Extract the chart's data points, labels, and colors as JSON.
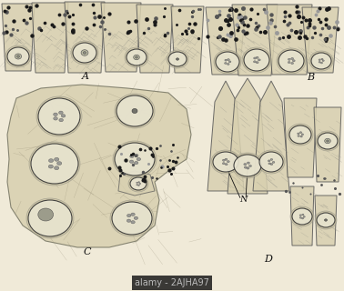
{
  "bg_color": "#f0ead8",
  "watermark_text": "alamy - 2AJHA97",
  "watermark_bg": "#1a1a1a",
  "watermark_fg": "#bbbbbb",
  "label_A": "A",
  "label_B": "B",
  "label_C": "C",
  "label_D": "D",
  "label_N": "N",
  "label_color": "#111111",
  "cell_fill": "#d8d0b0",
  "cell_edge": "#555555",
  "fiber_color": "#888880",
  "dot_dark": "#1a1a1a",
  "dot_mid": "#555555",
  "dot_light": "#999999",
  "nucleus_fill": "#e8e4d0",
  "nucleus_edge": "#333333",
  "nucleolus_fill": "#a0a090",
  "figsize": [
    3.78,
    3.2
  ],
  "dpi": 100
}
